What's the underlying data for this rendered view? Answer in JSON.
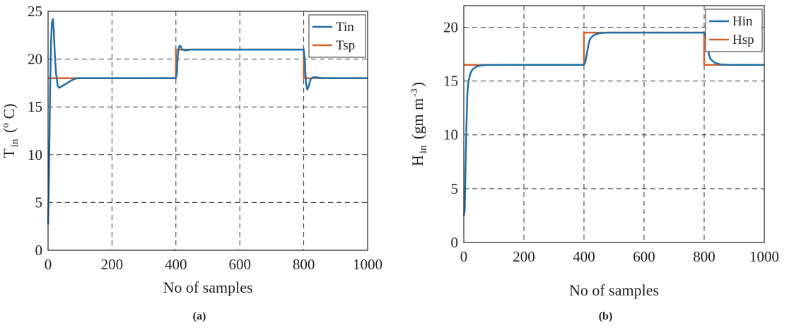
{
  "colors": {
    "measured": "#1f6fa8",
    "setpoint": "#d2622a"
  },
  "chart_data": [
    {
      "type": "line",
      "caption": "(a)",
      "xlabel": "No of samples",
      "ylabel_main": "T",
      "ylabel_sub": "in",
      "ylabel_rest": " (º C)",
      "xlim": [
        0,
        1000
      ],
      "ylim": [
        0,
        25
      ],
      "xticks": [
        0,
        200,
        400,
        600,
        800,
        1000
      ],
      "yticks": [
        0,
        5,
        10,
        15,
        20,
        25
      ],
      "grid": true,
      "legend": "top-right",
      "series": [
        {
          "name": "Tin",
          "x": [
            0,
            3,
            6,
            9,
            12,
            15,
            18,
            21,
            25,
            30,
            35,
            45,
            60,
            75,
            90,
            120,
            400,
            403,
            406,
            410,
            414,
            420,
            430,
            445,
            470,
            500,
            800,
            803,
            807,
            811,
            816,
            822,
            830,
            840,
            860,
            890,
            1000
          ],
          "y": [
            2.7,
            8,
            16,
            21.5,
            23.8,
            24.2,
            23,
            20.5,
            18.5,
            17.2,
            17,
            17.2,
            17.5,
            17.8,
            18,
            18,
            18,
            18.5,
            20.5,
            21.3,
            21.4,
            21,
            20.9,
            21,
            21,
            21,
            21,
            20,
            17.5,
            16.8,
            17.2,
            17.9,
            18.1,
            18.1,
            18,
            18,
            18
          ]
        },
        {
          "name": "Tsp",
          "x": [
            0,
            400,
            400,
            800,
            800,
            1000
          ],
          "y": [
            18,
            18,
            21,
            21,
            18,
            18
          ]
        }
      ]
    },
    {
      "type": "line",
      "caption": "(b)",
      "xlabel": "No of samples",
      "ylabel_main": "H",
      "ylabel_sub": "in",
      "ylabel_rest": " (gm m",
      "ylabel_sup": "-3",
      "ylabel_end": ")",
      "xlim": [
        0,
        1000
      ],
      "ylim": [
        0,
        22
      ],
      "xticks": [
        0,
        200,
        400,
        600,
        800,
        1000
      ],
      "yticks": [
        0,
        5,
        10,
        15,
        20
      ],
      "grid": true,
      "legend": "top-right",
      "series": [
        {
          "name": "Hin",
          "x": [
            0,
            3,
            6,
            9,
            12,
            15,
            20,
            25,
            30,
            40,
            50,
            60,
            80,
            400,
            405,
            410,
            415,
            420,
            430,
            440,
            455,
            480,
            800,
            805,
            810,
            815,
            820,
            830,
            840,
            855,
            880,
            1000
          ],
          "y": [
            2.5,
            3,
            7,
            11,
            13.8,
            14.9,
            15.5,
            15.9,
            16.1,
            16.3,
            16.4,
            16.45,
            16.5,
            16.5,
            16.8,
            17.6,
            18.4,
            18.9,
            19.2,
            19.35,
            19.45,
            19.5,
            19.5,
            19.2,
            18.4,
            17.6,
            17.1,
            16.8,
            16.65,
            16.55,
            16.5,
            16.5
          ]
        },
        {
          "name": "Hsp",
          "x": [
            0,
            400,
            400,
            800,
            800,
            1000
          ],
          "y": [
            16.5,
            16.5,
            19.5,
            19.5,
            16.5,
            16.5
          ]
        }
      ]
    }
  ]
}
